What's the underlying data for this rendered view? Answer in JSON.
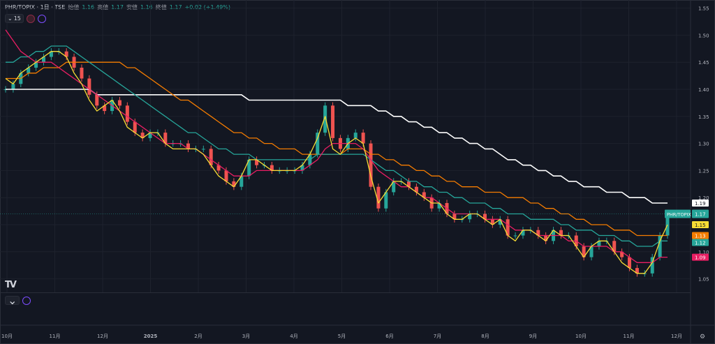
{
  "header": {
    "symbol": "PHR/TOPIX · 1日 · TSE",
    "open_label": "始値",
    "open_value": "1.16",
    "high_label": "高値",
    "high_value": "1.17",
    "low_label": "安値",
    "low_value": "1.16",
    "close_label": "終値",
    "close_value": "1.17",
    "change": "+0.02 (+1.49%)",
    "indicator_count": "15"
  },
  "colors": {
    "background": "#131722",
    "up": "#26a69a",
    "down": "#ef5350",
    "ma_yellow": "#f7dc35",
    "ma_pink": "#e91e63",
    "ma_teal": "#26a69a",
    "ma_orange": "#f57c00",
    "ma_white": "#ffffff"
  },
  "chart_data": {
    "type": "line",
    "title": "PHR/TOPIX",
    "y_axis_ticks": [
      "1.55",
      "1.50",
      "1.45",
      "1.40",
      "1.35",
      "1.30",
      "1.25",
      "1.20",
      "1.15",
      "1.10",
      "1.05"
    ],
    "ylim": [
      1.025,
      1.565
    ],
    "x_axis_ticks": [
      "10月",
      "11月",
      "12月",
      "2025",
      "2月",
      "3月",
      "4月",
      "5月",
      "6月",
      "7月",
      "8月",
      "9月",
      "10月",
      "11月",
      "12月"
    ],
    "grid": true,
    "price_label": {
      "text": "PHR/TOPIX",
      "value": "1.17"
    },
    "axis_badges": [
      {
        "value": "1.19",
        "series": "white"
      },
      {
        "value": "1.15",
        "series": "yellow"
      },
      {
        "value": "1.13",
        "series": "orange"
      },
      {
        "value": "1.12",
        "series": "teal"
      },
      {
        "value": "1.09",
        "series": "pink"
      }
    ],
    "series": [
      {
        "key": "price",
        "values": [
          1.4,
          1.41,
          1.43,
          1.44,
          1.45,
          1.46,
          1.47,
          1.47,
          1.46,
          1.44,
          1.42,
          1.39,
          1.37,
          1.36,
          1.38,
          1.37,
          1.34,
          1.32,
          1.31,
          1.32,
          1.32,
          1.3,
          1.3,
          1.3,
          1.29,
          1.29,
          1.29,
          1.26,
          1.25,
          1.23,
          1.22,
          1.24,
          1.27,
          1.26,
          1.26,
          1.25,
          1.25,
          1.25,
          1.25,
          1.26,
          1.28,
          1.32,
          1.37,
          1.31,
          1.29,
          1.31,
          1.32,
          1.3,
          1.22,
          1.18,
          1.21,
          1.23,
          1.23,
          1.22,
          1.21,
          1.2,
          1.18,
          1.19,
          1.17,
          1.16,
          1.16,
          1.17,
          1.17,
          1.16,
          1.15,
          1.16,
          1.13,
          1.13,
          1.14,
          1.14,
          1.13,
          1.12,
          1.14,
          1.13,
          1.13,
          1.11,
          1.09,
          1.11,
          1.12,
          1.12,
          1.1,
          1.09,
          1.07,
          1.06,
          1.06,
          1.09,
          1.13,
          1.17
        ]
      },
      {
        "key": "yellow",
        "values": [
          1.42,
          1.41,
          1.43,
          1.44,
          1.45,
          1.46,
          1.47,
          1.47,
          1.46,
          1.43,
          1.41,
          1.38,
          1.36,
          1.37,
          1.38,
          1.36,
          1.33,
          1.32,
          1.31,
          1.32,
          1.32,
          1.3,
          1.29,
          1.29,
          1.29,
          1.29,
          1.28,
          1.26,
          1.24,
          1.23,
          1.22,
          1.24,
          1.27,
          1.27,
          1.26,
          1.25,
          1.25,
          1.25,
          1.25,
          1.26,
          1.28,
          1.31,
          1.35,
          1.29,
          1.28,
          1.3,
          1.31,
          1.3,
          1.24,
          1.19,
          1.21,
          1.23,
          1.23,
          1.22,
          1.21,
          1.2,
          1.19,
          1.19,
          1.17,
          1.16,
          1.16,
          1.17,
          1.17,
          1.16,
          1.15,
          1.16,
          1.13,
          1.12,
          1.14,
          1.14,
          1.13,
          1.12,
          1.14,
          1.13,
          1.13,
          1.11,
          1.09,
          1.11,
          1.12,
          1.12,
          1.1,
          1.08,
          1.07,
          1.06,
          1.06,
          1.08,
          1.12,
          1.15
        ]
      },
      {
        "key": "pink",
        "values": [
          1.51,
          1.49,
          1.47,
          1.46,
          1.45,
          1.45,
          1.45,
          1.44,
          1.43,
          1.42,
          1.41,
          1.4,
          1.39,
          1.38,
          1.37,
          1.36,
          1.35,
          1.34,
          1.33,
          1.32,
          1.31,
          1.3,
          1.3,
          1.3,
          1.29,
          1.29,
          1.28,
          1.27,
          1.26,
          1.25,
          1.24,
          1.24,
          1.24,
          1.25,
          1.25,
          1.25,
          1.25,
          1.25,
          1.25,
          1.25,
          1.26,
          1.27,
          1.29,
          1.3,
          1.3,
          1.3,
          1.3,
          1.29,
          1.27,
          1.25,
          1.24,
          1.23,
          1.22,
          1.22,
          1.21,
          1.2,
          1.2,
          1.19,
          1.18,
          1.17,
          1.17,
          1.17,
          1.17,
          1.16,
          1.16,
          1.16,
          1.15,
          1.14,
          1.14,
          1.14,
          1.13,
          1.13,
          1.13,
          1.13,
          1.12,
          1.12,
          1.11,
          1.11,
          1.11,
          1.11,
          1.1,
          1.1,
          1.09,
          1.08,
          1.08,
          1.08,
          1.09,
          1.09
        ]
      },
      {
        "key": "teal",
        "values": [
          1.45,
          1.45,
          1.46,
          1.46,
          1.47,
          1.47,
          1.48,
          1.48,
          1.48,
          1.47,
          1.46,
          1.45,
          1.44,
          1.43,
          1.42,
          1.41,
          1.4,
          1.39,
          1.38,
          1.37,
          1.36,
          1.35,
          1.34,
          1.33,
          1.32,
          1.32,
          1.31,
          1.3,
          1.29,
          1.29,
          1.28,
          1.28,
          1.28,
          1.27,
          1.27,
          1.27,
          1.27,
          1.27,
          1.27,
          1.27,
          1.27,
          1.28,
          1.28,
          1.28,
          1.28,
          1.28,
          1.28,
          1.28,
          1.27,
          1.26,
          1.25,
          1.25,
          1.24,
          1.23,
          1.23,
          1.22,
          1.22,
          1.21,
          1.21,
          1.2,
          1.2,
          1.19,
          1.19,
          1.19,
          1.18,
          1.18,
          1.17,
          1.17,
          1.17,
          1.16,
          1.16,
          1.16,
          1.16,
          1.15,
          1.15,
          1.14,
          1.14,
          1.14,
          1.13,
          1.13,
          1.13,
          1.12,
          1.12,
          1.11,
          1.11,
          1.11,
          1.12,
          1.12
        ]
      },
      {
        "key": "orange",
        "values": [
          1.42,
          1.42,
          1.42,
          1.43,
          1.43,
          1.44,
          1.44,
          1.44,
          1.45,
          1.45,
          1.45,
          1.45,
          1.45,
          1.45,
          1.45,
          1.45,
          1.44,
          1.44,
          1.43,
          1.42,
          1.41,
          1.4,
          1.39,
          1.38,
          1.38,
          1.37,
          1.36,
          1.35,
          1.34,
          1.33,
          1.32,
          1.32,
          1.31,
          1.31,
          1.3,
          1.3,
          1.29,
          1.29,
          1.29,
          1.28,
          1.28,
          1.28,
          1.28,
          1.28,
          1.28,
          1.29,
          1.29,
          1.29,
          1.28,
          1.28,
          1.27,
          1.27,
          1.26,
          1.26,
          1.25,
          1.25,
          1.24,
          1.24,
          1.23,
          1.23,
          1.22,
          1.22,
          1.22,
          1.21,
          1.21,
          1.21,
          1.2,
          1.2,
          1.2,
          1.19,
          1.19,
          1.18,
          1.18,
          1.17,
          1.17,
          1.16,
          1.16,
          1.15,
          1.15,
          1.15,
          1.14,
          1.14,
          1.14,
          1.13,
          1.13,
          1.13,
          1.13,
          1.13
        ]
      },
      {
        "key": "white",
        "values": [
          1.4,
          1.4,
          1.4,
          1.4,
          1.4,
          1.4,
          1.4,
          1.4,
          1.4,
          1.4,
          1.4,
          1.4,
          1.39,
          1.39,
          1.39,
          1.39,
          1.39,
          1.39,
          1.39,
          1.39,
          1.39,
          1.39,
          1.39,
          1.39,
          1.39,
          1.39,
          1.39,
          1.39,
          1.39,
          1.39,
          1.39,
          1.39,
          1.38,
          1.38,
          1.38,
          1.38,
          1.38,
          1.38,
          1.38,
          1.38,
          1.38,
          1.38,
          1.38,
          1.38,
          1.38,
          1.37,
          1.37,
          1.37,
          1.37,
          1.36,
          1.36,
          1.35,
          1.35,
          1.34,
          1.34,
          1.33,
          1.33,
          1.32,
          1.32,
          1.31,
          1.31,
          1.3,
          1.3,
          1.29,
          1.29,
          1.28,
          1.27,
          1.27,
          1.26,
          1.26,
          1.25,
          1.25,
          1.24,
          1.24,
          1.23,
          1.23,
          1.22,
          1.22,
          1.22,
          1.21,
          1.21,
          1.21,
          1.2,
          1.2,
          1.2,
          1.19,
          1.19,
          1.19
        ]
      }
    ]
  }
}
